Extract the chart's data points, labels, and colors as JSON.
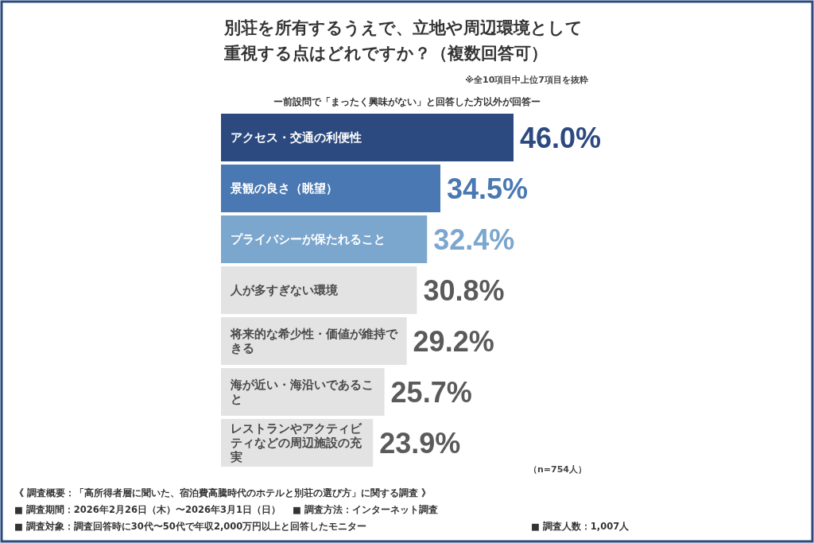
{
  "chart_data": {
    "type": "bar",
    "orientation": "horizontal",
    "data_labels": true,
    "title": "別荘を所有するうえで、立地や周辺環境として重視する点はどれですか？（複数回答可）",
    "subtitle": "ー前設問で「まったく興味がない」と回答した方以外が回答ー",
    "categories": [
      "アクセス・交通の利便性",
      "景観の良さ（眺望）",
      "プライバシーが保たれること",
      "人が多すぎない環境",
      "将来的な希少性・価値が維持できる",
      "海が近い・海沿いであること",
      "レストランやアクティビティなどの周辺施設の充実"
    ],
    "values": [
      46.0,
      34.5,
      32.4,
      30.8,
      29.2,
      25.7,
      23.9
    ],
    "colors": [
      "#2c4a80",
      "#4a78b2",
      "#7ba6cd",
      "#e3e3e3",
      "#e3e3e3",
      "#e3e3e3",
      "#e3e3e3"
    ],
    "value_labels": [
      "46.0%",
      "34.5%",
      "32.4%",
      "30.8%",
      "29.2%",
      "25.7%",
      "23.9%"
    ],
    "annotations": [
      "※全10項目中上位7項目を抜粋",
      "（n=754人）",
      "《 調査概要：「高所得者層に聞いた、宿泊費高騰時代のホテルと別荘の選び方」に関する調査 》",
      "■ 調査期間：2026年2月26日（木）〜2026年3月1日（日）",
      "■ 調査方法：インターネット調査",
      "■ 調査対象：調査回答時に30代〜50代で年収2,000万円以上と回答したモニター",
      "■ 調査人数：1,007人"
    ]
  }
}
